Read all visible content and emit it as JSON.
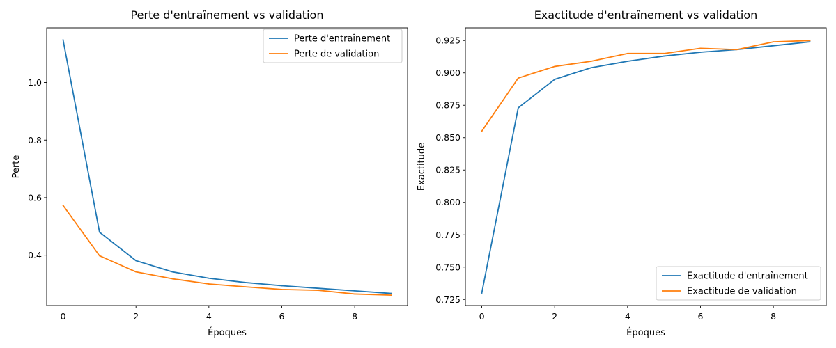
{
  "colors": {
    "train": "#1f77b4",
    "val": "#ff7f0e"
  },
  "chart_data": [
    {
      "type": "line",
      "title": "Perte d'entraînement vs validation",
      "xlabel": "Époques",
      "ylabel": "Perte",
      "x": [
        0,
        1,
        2,
        3,
        4,
        5,
        6,
        7,
        8,
        9
      ],
      "xlim": [
        -0.45,
        9.45
      ],
      "ylim": [
        0.225,
        1.19
      ],
      "xticks": [
        0,
        2,
        4,
        6,
        8
      ],
      "xtick_labels": [
        "0",
        "2",
        "4",
        "6",
        "8"
      ],
      "yticks": [
        0.4,
        0.6,
        0.8,
        1.0
      ],
      "ytick_labels": [
        "0.4",
        "0.6",
        "0.8",
        "1.0"
      ],
      "legend_position": "top-right",
      "series": [
        {
          "name": "Perte d'entraînement",
          "color_key": "train",
          "values": [
            1.148,
            0.48,
            0.381,
            0.342,
            0.32,
            0.305,
            0.294,
            0.285,
            0.276,
            0.267
          ]
        },
        {
          "name": "Perte de validation",
          "color_key": "val",
          "values": [
            0.573,
            0.398,
            0.342,
            0.318,
            0.3,
            0.29,
            0.281,
            0.278,
            0.265,
            0.261
          ]
        }
      ]
    },
    {
      "type": "line",
      "title": "Exactitude d'entraînement vs validation",
      "xlabel": "Époques",
      "ylabel": "Exactitude",
      "x": [
        0,
        1,
        2,
        3,
        4,
        5,
        6,
        7,
        8,
        9
      ],
      "xlim": [
        -0.45,
        9.45
      ],
      "ylim": [
        0.7203,
        0.9348
      ],
      "xticks": [
        0,
        2,
        4,
        6,
        8
      ],
      "xtick_labels": [
        "0",
        "2",
        "4",
        "6",
        "8"
      ],
      "yticks": [
        0.725,
        0.75,
        0.775,
        0.8,
        0.825,
        0.85,
        0.875,
        0.9,
        0.925
      ],
      "ytick_labels": [
        "0.725",
        "0.750",
        "0.775",
        "0.800",
        "0.825",
        "0.850",
        "0.875",
        "0.900",
        "0.925"
      ],
      "legend_position": "bottom-right",
      "series": [
        {
          "name": "Exactitude d'entraînement",
          "color_key": "train",
          "values": [
            0.73,
            0.873,
            0.895,
            0.904,
            0.909,
            0.913,
            0.916,
            0.918,
            0.921,
            0.924
          ]
        },
        {
          "name": "Exactitude de validation",
          "color_key": "val",
          "values": [
            0.855,
            0.896,
            0.905,
            0.909,
            0.915,
            0.915,
            0.919,
            0.918,
            0.924,
            0.925
          ]
        }
      ]
    }
  ]
}
